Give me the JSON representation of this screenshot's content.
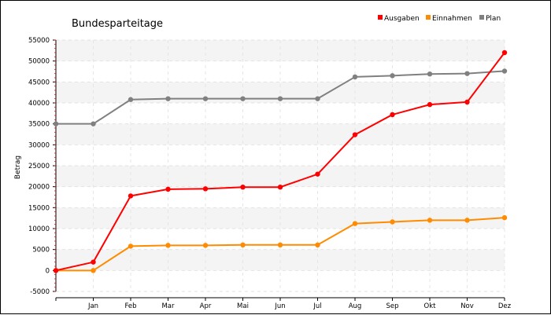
{
  "chart_data": {
    "type": "line",
    "title": "Bundesparteitage",
    "xlabel": "",
    "ylabel": "Betrag",
    "categories": [
      "",
      "Jan",
      "Feb",
      "Mar",
      "Apr",
      "Mai",
      "Jun",
      "Jul",
      "Aug",
      "Sep",
      "Okt",
      "Nov",
      "Dez"
    ],
    "ylim": [
      -5000,
      55000
    ],
    "yticks": [
      -5000,
      0,
      5000,
      10000,
      15000,
      20000,
      25000,
      30000,
      35000,
      40000,
      45000,
      50000,
      55000
    ],
    "grid": true,
    "legend_position": "top-right",
    "series": [
      {
        "name": "Ausgaben",
        "color": "#ff0000",
        "values": [
          0,
          2000,
          17800,
          19400,
          19500,
          19900,
          19900,
          23000,
          32400,
          37200,
          39600,
          40200,
          52000
        ]
      },
      {
        "name": "Einnahmen",
        "color": "#ff8c00",
        "values": [
          0,
          0,
          5800,
          6000,
          6000,
          6100,
          6100,
          6100,
          11200,
          11600,
          12000,
          12000,
          12600
        ]
      },
      {
        "name": "Plan",
        "color": "#808080",
        "values": [
          35000,
          35000,
          40800,
          41000,
          41000,
          41000,
          41000,
          41000,
          46200,
          46500,
          46900,
          47000,
          47600
        ]
      }
    ]
  }
}
